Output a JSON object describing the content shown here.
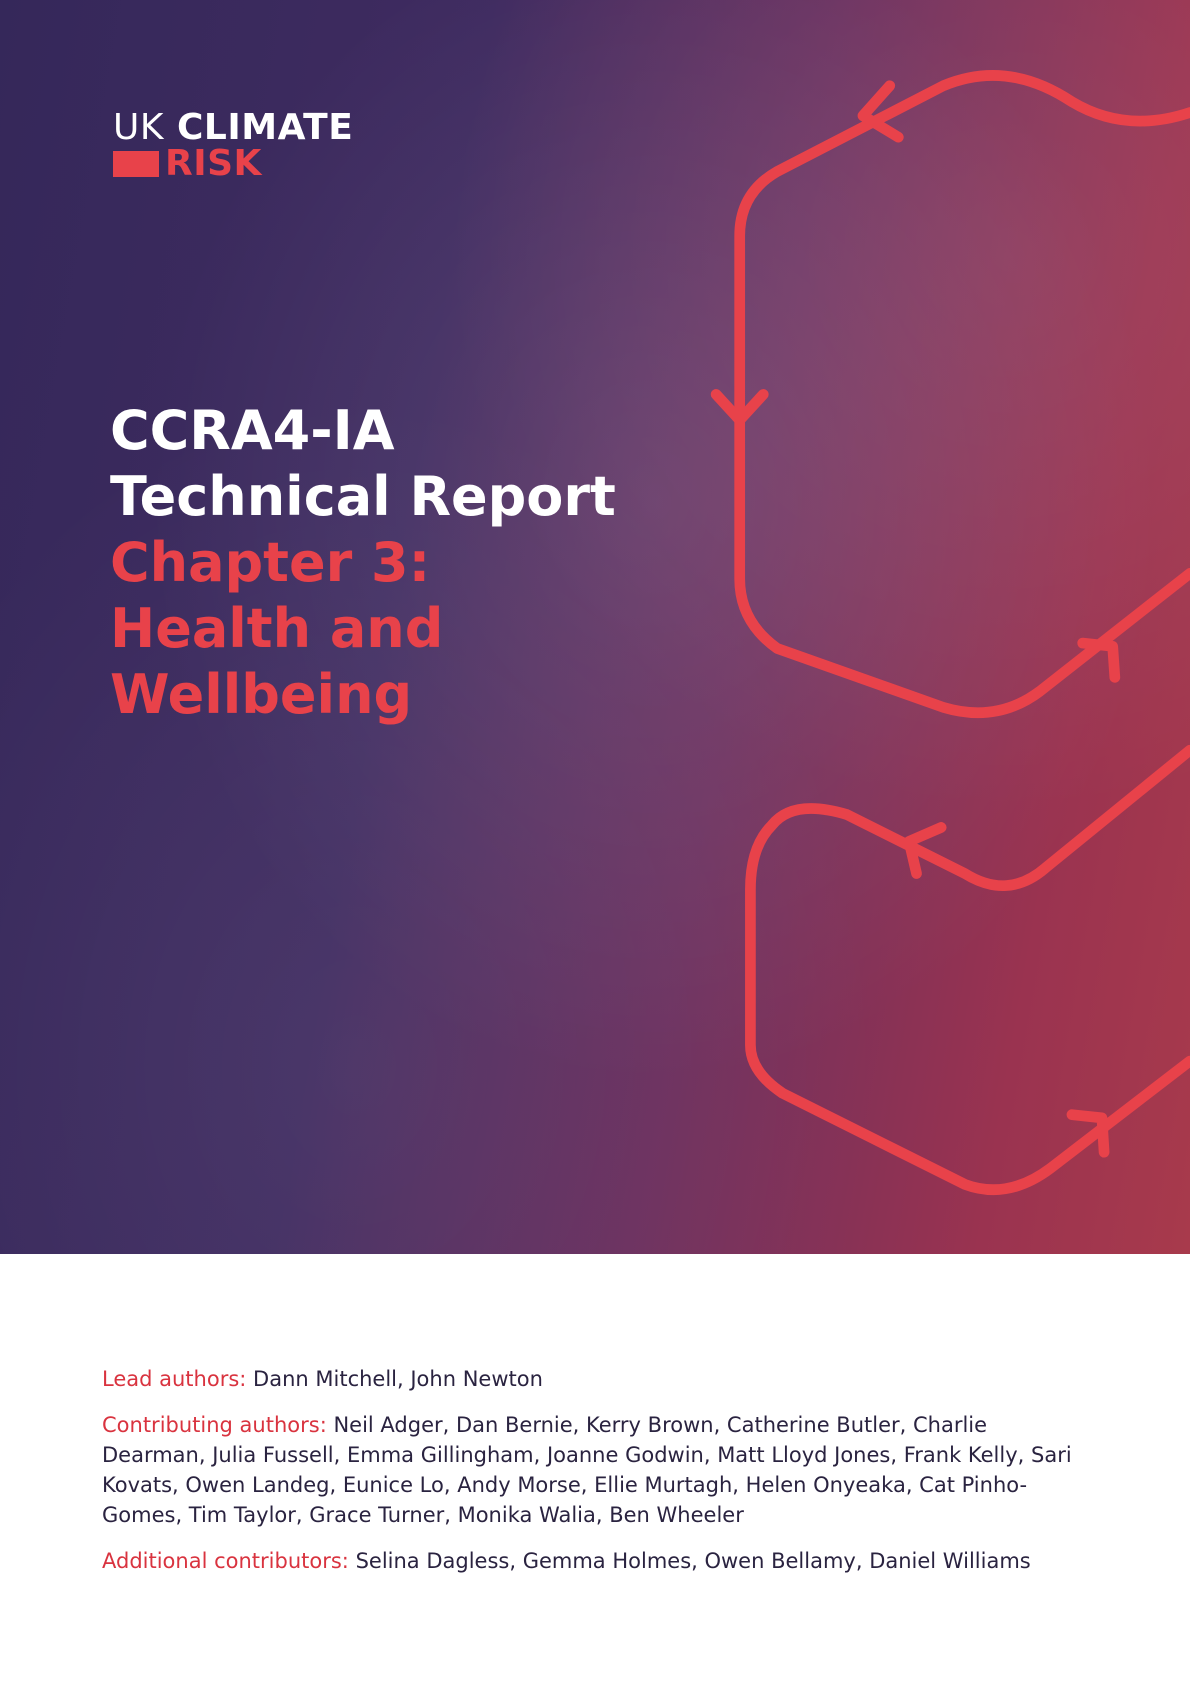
{
  "logo": {
    "prefix": "UK",
    "word1": "CLIMATE",
    "word2": "RISK"
  },
  "title": {
    "line1": "CCRA4-IA",
    "line2": "Technical Report",
    "chapter": "Chapter 3: Health and Wellbeing"
  },
  "credits": [
    {
      "label": "Lead authors:",
      "names": "Dann Mitchell, John Newton"
    },
    {
      "label": "Contributing authors:",
      "names": "Neil Adger, Dan Bernie, Kerry Brown, Catherine Butler, Charlie Dearman, Julia Fussell, Emma Gillingham, Joanne Godwin, Matt Lloyd Jones, Frank Kelly, Sari Kovats, Owen Landeg, Eunice Lo, Andy Morse, Ellie Murtagh, Helen Onyeaka, Cat Pinho-Gomes, Tim Taylor, Grace Turner, Monika Walia, Ben Wheeler"
    },
    {
      "label": "Additional contributors:",
      "names": "Selina Dagless, Gemma Holmes, Owen Bellamy, Daniel Williams"
    }
  ]
}
